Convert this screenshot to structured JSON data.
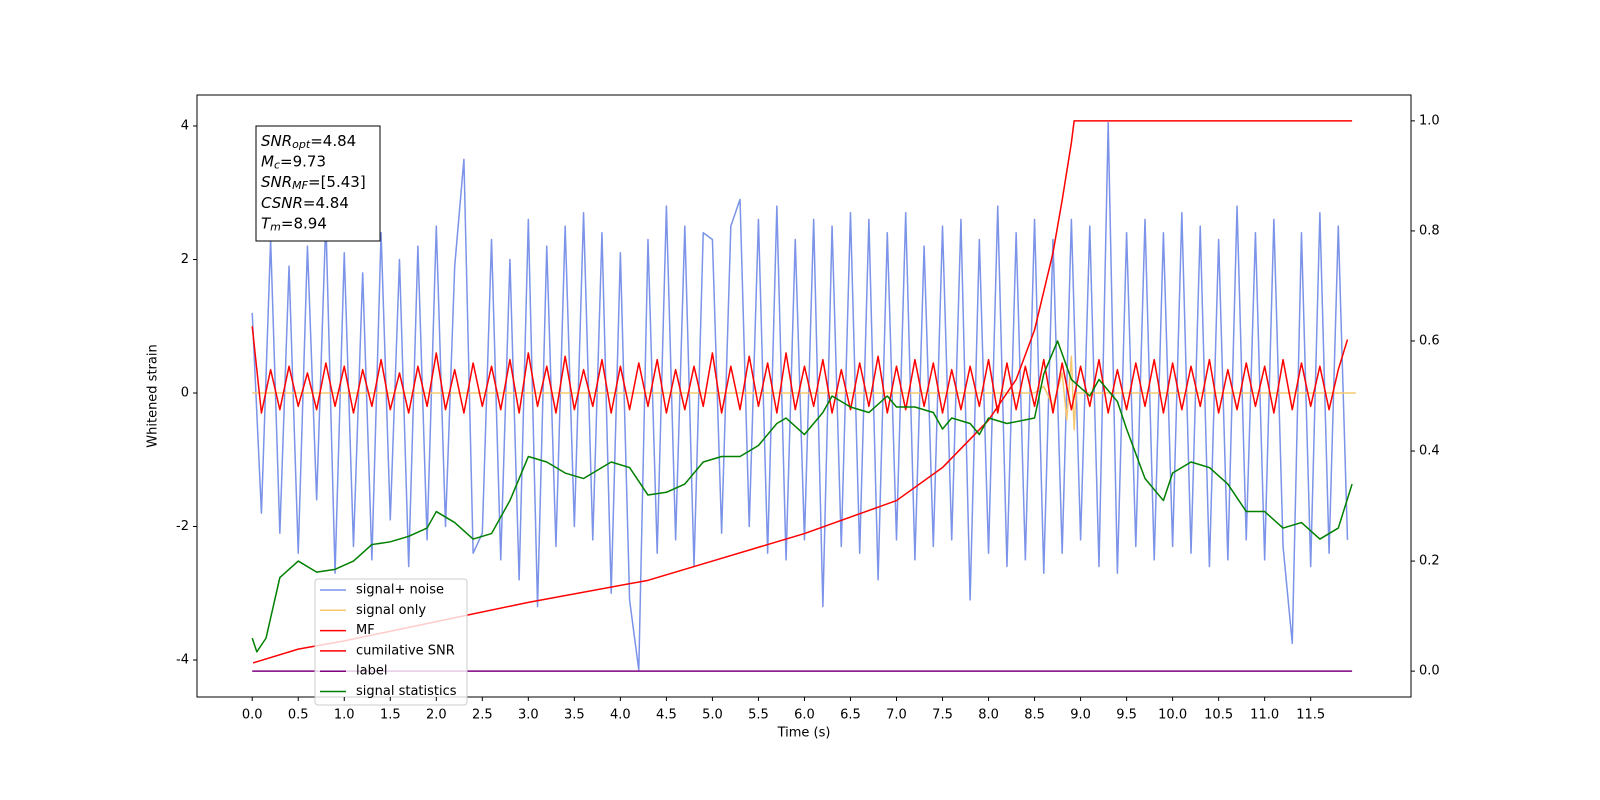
{
  "chart_data": {
    "type": "line",
    "xlabel": "Time (s)",
    "ylabel": "Whitened strain",
    "xlim": [
      -0.6,
      12.59
    ],
    "ylim": [
      -4.554,
      4.464
    ],
    "y2lim": [
      -0.047,
      1.047
    ],
    "xticks": [
      {
        "value": 0,
        "label": "0.0"
      },
      0.5,
      {
        "value": 1,
        "label": "1.0"
      },
      1.5,
      {
        "value": 2,
        "label": "2.0"
      },
      2.5,
      {
        "value": 3,
        "label": "3.0"
      },
      3.5,
      {
        "value": 4,
        "label": "4.0"
      },
      4.5,
      {
        "value": 5,
        "label": "5.0"
      },
      5.5,
      {
        "value": 6,
        "label": "6.0"
      },
      6.5,
      {
        "value": 7,
        "label": "7.0"
      },
      7.5,
      {
        "value": 8,
        "label": "8.0"
      },
      8.5,
      {
        "value": 9,
        "label": "9.0"
      },
      9.5,
      {
        "value": 10,
        "label": "10.0"
      },
      10.5,
      {
        "value": 11,
        "label": "11.0"
      },
      11.5
    ],
    "yticks": [
      -4,
      -2,
      0,
      2,
      4
    ],
    "y2ticks": [
      {
        "value": 0,
        "label": "0.0"
      },
      0.2,
      0.4,
      0.6,
      0.8,
      {
        "value": 1,
        "label": "1.0"
      }
    ],
    "legend_loc": "lower left",
    "x": [
      0,
      0.1,
      0.2,
      0.3,
      0.4,
      0.5,
      0.6,
      0.7,
      0.8,
      0.9,
      1,
      1.1,
      1.2,
      1.3,
      1.4,
      1.5,
      1.6,
      1.7,
      1.8,
      1.9,
      2,
      2.1,
      2.2,
      2.3,
      2.4,
      2.5,
      2.6,
      2.7,
      2.8,
      2.9,
      3,
      3.1,
      3.2,
      3.3,
      3.4,
      3.5,
      3.6,
      3.7,
      3.8,
      3.9,
      4,
      4.1,
      4.2,
      4.3,
      4.4,
      4.5,
      4.6,
      4.7,
      4.8,
      4.9,
      5,
      5.1,
      5.2,
      5.3,
      5.4,
      5.5,
      5.6,
      5.7,
      5.8,
      5.9,
      6,
      6.1,
      6.2,
      6.3,
      6.4,
      6.5,
      6.6,
      6.7,
      6.8,
      6.9,
      7,
      7.1,
      7.2,
      7.3,
      7.4,
      7.5,
      7.6,
      7.7,
      7.8,
      7.9,
      8,
      8.1,
      8.2,
      8.3,
      8.4,
      8.5,
      8.6,
      8.7,
      8.8,
      8.9,
      9,
      9.1,
      9.2,
      9.3,
      9.4,
      9.5,
      9.6,
      9.7,
      9.8,
      9.9,
      10,
      10.1,
      10.2,
      10.3,
      10.4,
      10.5,
      10.6,
      10.7,
      10.8,
      10.9,
      11,
      11.1,
      11.2,
      11.3,
      11.4,
      11.5,
      11.6,
      11.7,
      11.8,
      11.9
    ],
    "series": [
      {
        "name": "signal+ noise",
        "color": "#7b93e8",
        "values": [
          1.2,
          -1.8,
          2.3,
          -2.1,
          1.9,
          -2.4,
          2.2,
          -1.6,
          2.6,
          -2.7,
          2.1,
          -2.3,
          1.8,
          -2.5,
          2.4,
          -1.9,
          2.0,
          -2.6,
          2.2,
          -2.2,
          2.5,
          -2.0,
          1.9,
          3.5,
          -2.4,
          -2.1,
          2.3,
          -2.5,
          2.0,
          -2.8,
          2.6,
          -3.2,
          2.2,
          -2.3,
          2.5,
          -2.0,
          2.7,
          -2.2,
          2.4,
          -3.0,
          2.1,
          -3.1,
          -4.15,
          2.3,
          -2.4,
          2.8,
          -2.2,
          2.5,
          -2.6,
          2.4,
          2.3,
          -2.1,
          2.5,
          2.9,
          -2.0,
          2.6,
          -2.4,
          2.8,
          -2.5,
          2.3,
          -2.2,
          2.6,
          -3.2,
          2.5,
          -2.3,
          2.7,
          -2.4,
          2.6,
          -2.8,
          2.4,
          -2.2,
          2.7,
          -2.5,
          2.2,
          -2.3,
          2.5,
          -2.2,
          2.6,
          -3.1,
          2.3,
          -2.4,
          2.8,
          -2.6,
          2.4,
          -2.5,
          2.6,
          -2.7,
          2.3,
          -2.4,
          2.6,
          -2.2,
          2.5,
          -2.6,
          4.05,
          -2.7,
          2.4,
          -2.3,
          2.6,
          -2.5,
          2.4,
          -2.3,
          2.7,
          -2.4,
          2.5,
          -2.6,
          2.3,
          -2.5,
          2.8,
          -2.2,
          2.4,
          -2.5,
          2.6,
          -2.3,
          -3.75,
          2.4,
          -2.6,
          2.7,
          -2.4,
          2.5,
          -2.2
        ]
      },
      {
        "name": "signal only",
        "color": "#f5c870",
        "x": [
          0,
          8.5,
          8.6,
          8.7,
          8.8,
          8.85,
          8.9,
          8.93,
          8.95,
          9.0,
          11.99
        ],
        "values": [
          0,
          0,
          0.1,
          -0.2,
          0.3,
          -0.4,
          0.55,
          -0.55,
          0,
          0,
          0
        ]
      },
      {
        "name": "MF",
        "color": "#ff0000",
        "values": [
          1.0,
          -0.3,
          0.35,
          -0.25,
          0.4,
          -0.2,
          0.3,
          -0.25,
          0.45,
          -0.2,
          0.4,
          -0.3,
          0.35,
          -0.2,
          0.5,
          -0.25,
          0.3,
          -0.3,
          0.4,
          -0.2,
          0.6,
          -0.25,
          0.35,
          -0.3,
          0.45,
          -0.2,
          0.4,
          -0.25,
          0.5,
          -0.3,
          0.6,
          -0.2,
          0.4,
          -0.3,
          0.55,
          -0.25,
          0.35,
          -0.2,
          0.5,
          -0.3,
          0.4,
          -0.25,
          0.45,
          -0.2,
          0.5,
          -0.3,
          0.35,
          -0.25,
          0.4,
          -0.2,
          0.6,
          -0.3,
          0.4,
          -0.25,
          0.55,
          -0.2,
          0.45,
          -0.3,
          0.6,
          -0.25,
          0.4,
          -0.2,
          0.5,
          -0.3,
          0.35,
          -0.25,
          0.45,
          -0.2,
          0.55,
          -0.3,
          0.4,
          -0.25,
          0.5,
          -0.2,
          0.45,
          -0.3,
          0.35,
          -0.25,
          0.4,
          -0.2,
          0.5,
          -0.3,
          0.45,
          -0.25,
          0.4,
          -0.2,
          0.5,
          -0.3,
          0.45,
          -0.25,
          0.4,
          -0.2,
          0.5,
          -0.3,
          0.35,
          -0.25,
          0.45,
          -0.2,
          0.5,
          -0.3,
          0.45,
          -0.25,
          0.4,
          -0.2,
          0.5,
          -0.3,
          0.35,
          -0.25,
          0.45,
          -0.2,
          0.4,
          -0.3,
          0.5,
          -0.25,
          0.45,
          -0.2,
          0.4,
          -0.25,
          0.35,
          0.8
        ]
      },
      {
        "name": "cumilative SNR",
        "color": "#ff0000",
        "axis": "y2",
        "x": [
          0.01,
          0.5,
          1.0,
          2.0,
          3.0,
          4.3,
          5.0,
          6.0,
          7.0,
          7.5,
          8.0,
          8.3,
          8.5,
          8.7,
          8.8,
          8.9,
          8.93,
          11.95
        ],
        "values": [
          0.015,
          0.04,
          0.055,
          0.09,
          0.125,
          0.165,
          0.2,
          0.25,
          0.31,
          0.37,
          0.456,
          0.53,
          0.62,
          0.76,
          0.856,
          0.96,
          1.0,
          1.0
        ]
      },
      {
        "name": "label",
        "color": "#800080",
        "axis": "y2",
        "x": [
          0,
          11.95
        ],
        "values": [
          0,
          0
        ]
      },
      {
        "name": "signal statistics",
        "color": "#008000",
        "axis": "y2",
        "x": [
          0,
          0.05,
          0.15,
          0.3,
          0.5,
          0.7,
          0.9,
          1.1,
          1.3,
          1.5,
          1.7,
          1.9,
          2.0,
          2.2,
          2.4,
          2.6,
          2.8,
          3.0,
          3.2,
          3.4,
          3.6,
          3.8,
          3.9,
          4.1,
          4.3,
          4.5,
          4.7,
          4.9,
          5.1,
          5.3,
          5.5,
          5.7,
          5.8,
          6.0,
          6.2,
          6.3,
          6.5,
          6.7,
          6.9,
          7.0,
          7.2,
          7.4,
          7.5,
          7.6,
          7.8,
          7.9,
          8.0,
          8.2,
          8.5,
          8.6,
          8.75,
          8.9,
          9.1,
          9.2,
          9.4,
          9.5,
          9.7,
          9.9,
          10.0,
          10.2,
          10.4,
          10.6,
          10.8,
          11.0,
          11.2,
          11.4,
          11.6,
          11.8,
          11.95
        ],
        "values": [
          0.06,
          0.035,
          0.06,
          0.17,
          0.2,
          0.18,
          0.185,
          0.2,
          0.23,
          0.235,
          0.245,
          0.26,
          0.29,
          0.27,
          0.24,
          0.25,
          0.31,
          0.39,
          0.38,
          0.36,
          0.35,
          0.37,
          0.38,
          0.37,
          0.32,
          0.325,
          0.34,
          0.38,
          0.39,
          0.39,
          0.41,
          0.45,
          0.46,
          0.43,
          0.47,
          0.5,
          0.48,
          0.47,
          0.5,
          0.48,
          0.48,
          0.47,
          0.44,
          0.46,
          0.45,
          0.43,
          0.46,
          0.45,
          0.46,
          0.54,
          0.6,
          0.53,
          0.5,
          0.53,
          0.49,
          0.44,
          0.35,
          0.31,
          0.36,
          0.38,
          0.37,
          0.34,
          0.29,
          0.29,
          0.26,
          0.27,
          0.24,
          0.26,
          0.34
        ]
      }
    ],
    "annotations": [
      {
        "symbol": "SNR",
        "sub": "opt",
        "text": "=4.84"
      },
      {
        "symbol": "M",
        "sub": "c",
        "text": "=9.73"
      },
      {
        "symbol": "SNR",
        "sub": "MF",
        "text": "=[5.43]"
      },
      {
        "symbol": "CSNR",
        "sub": "",
        "text": "=4.84"
      },
      {
        "symbol": "T",
        "sub": "m",
        "text": "=8.94"
      }
    ]
  }
}
